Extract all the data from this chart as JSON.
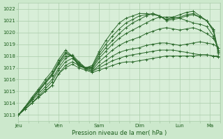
{
  "xlabel": "Pression niveau de la mer( hPa )",
  "bg_color": "#cce8cc",
  "plot_bg_color": "#d8eed8",
  "grid_color": "#aaccaa",
  "line_color": "#2d6a2d",
  "ylim": [
    1012.5,
    1022.5
  ],
  "yticks": [
    1013,
    1014,
    1015,
    1016,
    1017,
    1018,
    1019,
    1020,
    1021,
    1022
  ],
  "day_labels": [
    "Jeu",
    "Ven",
    "Sam",
    "Dim",
    "Lun",
    "Ma"
  ],
  "day_positions": [
    0,
    24,
    48,
    72,
    96,
    114
  ],
  "xlim": [
    0,
    120
  ],
  "line_width": 0.7,
  "marker_size": 3.0,
  "series": [
    {
      "points": [
        [
          0,
          1013.0
        ],
        [
          4,
          1013.5
        ],
        [
          8,
          1014.0
        ],
        [
          12,
          1014.5
        ],
        [
          16,
          1015.0
        ],
        [
          20,
          1015.5
        ],
        [
          24,
          1016.5
        ],
        [
          28,
          1017.0
        ],
        [
          32,
          1017.3
        ],
        [
          36,
          1017.0
        ],
        [
          40,
          1016.8
        ],
        [
          44,
          1016.6
        ],
        [
          48,
          1016.8
        ],
        [
          52,
          1017.0
        ],
        [
          56,
          1017.2
        ],
        [
          60,
          1017.4
        ],
        [
          64,
          1017.5
        ],
        [
          68,
          1017.5
        ],
        [
          72,
          1017.6
        ],
        [
          76,
          1017.7
        ],
        [
          80,
          1017.8
        ],
        [
          84,
          1017.9
        ],
        [
          88,
          1018.0
        ],
        [
          92,
          1018.0
        ],
        [
          96,
          1018.0
        ],
        [
          100,
          1018.0
        ],
        [
          104,
          1018.0
        ],
        [
          108,
          1018.1
        ],
        [
          112,
          1018.1
        ],
        [
          116,
          1018.0
        ],
        [
          119,
          1017.9
        ]
      ]
    },
    {
      "points": [
        [
          0,
          1013.0
        ],
        [
          4,
          1013.5
        ],
        [
          8,
          1014.0
        ],
        [
          12,
          1014.5
        ],
        [
          16,
          1015.0
        ],
        [
          20,
          1015.5
        ],
        [
          24,
          1016.5
        ],
        [
          28,
          1017.2
        ],
        [
          32,
          1017.5
        ],
        [
          36,
          1017.2
        ],
        [
          40,
          1016.9
        ],
        [
          44,
          1016.7
        ],
        [
          48,
          1017.0
        ],
        [
          52,
          1017.3
        ],
        [
          56,
          1017.6
        ],
        [
          60,
          1017.8
        ],
        [
          64,
          1018.0
        ],
        [
          68,
          1018.1
        ],
        [
          72,
          1018.2
        ],
        [
          76,
          1018.3
        ],
        [
          80,
          1018.4
        ],
        [
          84,
          1018.5
        ],
        [
          88,
          1018.5
        ],
        [
          92,
          1018.5
        ],
        [
          96,
          1018.4
        ],
        [
          100,
          1018.3
        ],
        [
          104,
          1018.2
        ],
        [
          108,
          1018.1
        ],
        [
          112,
          1018.1
        ],
        [
          116,
          1018.0
        ],
        [
          119,
          1018.0
        ]
      ]
    },
    {
      "points": [
        [
          0,
          1013.0
        ],
        [
          4,
          1013.5
        ],
        [
          8,
          1014.0
        ],
        [
          12,
          1014.6
        ],
        [
          16,
          1015.2
        ],
        [
          20,
          1015.8
        ],
        [
          24,
          1016.8
        ],
        [
          28,
          1017.5
        ],
        [
          32,
          1017.8
        ],
        [
          36,
          1017.3
        ],
        [
          40,
          1016.9
        ],
        [
          44,
          1016.7
        ],
        [
          48,
          1017.2
        ],
        [
          52,
          1017.6
        ],
        [
          56,
          1018.0
        ],
        [
          60,
          1018.3
        ],
        [
          64,
          1018.5
        ],
        [
          68,
          1018.6
        ],
        [
          72,
          1018.7
        ],
        [
          76,
          1018.9
        ],
        [
          80,
          1019.0
        ],
        [
          84,
          1019.1
        ],
        [
          88,
          1019.1
        ],
        [
          92,
          1019.0
        ],
        [
          96,
          1018.9
        ],
        [
          100,
          1019.0
        ],
        [
          104,
          1019.1
        ],
        [
          108,
          1019.2
        ],
        [
          112,
          1019.1
        ],
        [
          116,
          1019.0
        ],
        [
          119,
          1018.7
        ]
      ]
    },
    {
      "points": [
        [
          0,
          1013.0
        ],
        [
          4,
          1013.6
        ],
        [
          8,
          1014.2
        ],
        [
          12,
          1014.8
        ],
        [
          16,
          1015.4
        ],
        [
          20,
          1016.0
        ],
        [
          24,
          1017.0
        ],
        [
          28,
          1017.8
        ],
        [
          32,
          1018.1
        ],
        [
          36,
          1017.5
        ],
        [
          40,
          1017.0
        ],
        [
          44,
          1016.8
        ],
        [
          48,
          1017.5
        ],
        [
          52,
          1018.0
        ],
        [
          56,
          1018.5
        ],
        [
          60,
          1018.9
        ],
        [
          64,
          1019.2
        ],
        [
          68,
          1019.4
        ],
        [
          72,
          1019.6
        ],
        [
          76,
          1019.9
        ],
        [
          80,
          1020.1
        ],
        [
          84,
          1020.3
        ],
        [
          88,
          1020.4
        ],
        [
          92,
          1020.3
        ],
        [
          96,
          1020.2
        ],
        [
          100,
          1020.3
        ],
        [
          104,
          1020.4
        ],
        [
          108,
          1020.2
        ],
        [
          112,
          1019.9
        ],
        [
          116,
          1019.5
        ],
        [
          119,
          1018.7
        ]
      ]
    },
    {
      "points": [
        [
          0,
          1013.0
        ],
        [
          4,
          1013.6
        ],
        [
          8,
          1014.3
        ],
        [
          12,
          1015.0
        ],
        [
          16,
          1015.7
        ],
        [
          20,
          1016.3
        ],
        [
          24,
          1017.3
        ],
        [
          28,
          1018.0
        ],
        [
          32,
          1018.0
        ],
        [
          36,
          1017.4
        ],
        [
          40,
          1017.0
        ],
        [
          44,
          1016.9
        ],
        [
          48,
          1017.8
        ],
        [
          52,
          1018.4
        ],
        [
          56,
          1019.0
        ],
        [
          60,
          1019.5
        ],
        [
          64,
          1019.9
        ],
        [
          68,
          1020.2
        ],
        [
          72,
          1020.5
        ],
        [
          76,
          1020.8
        ],
        [
          80,
          1021.1
        ],
        [
          84,
          1021.3
        ],
        [
          88,
          1021.3
        ],
        [
          92,
          1021.3
        ],
        [
          96,
          1021.2
        ],
        [
          100,
          1021.0
        ],
        [
          104,
          1020.8
        ],
        [
          108,
          1020.7
        ],
        [
          112,
          1020.5
        ],
        [
          116,
          1019.7
        ],
        [
          119,
          1018.5
        ]
      ]
    },
    {
      "points": [
        [
          0,
          1013.0
        ],
        [
          4,
          1013.6
        ],
        [
          8,
          1014.3
        ],
        [
          12,
          1015.0
        ],
        [
          16,
          1015.7
        ],
        [
          20,
          1016.4
        ],
        [
          24,
          1017.4
        ],
        [
          28,
          1018.2
        ],
        [
          32,
          1018.0
        ],
        [
          36,
          1017.3
        ],
        [
          40,
          1017.0
        ],
        [
          44,
          1017.0
        ],
        [
          48,
          1018.0
        ],
        [
          52,
          1018.7
        ],
        [
          56,
          1019.3
        ],
        [
          60,
          1019.9
        ],
        [
          64,
          1020.4
        ],
        [
          68,
          1020.8
        ],
        [
          72,
          1021.1
        ],
        [
          76,
          1021.4
        ],
        [
          80,
          1021.6
        ],
        [
          84,
          1021.4
        ],
        [
          88,
          1021.0
        ],
        [
          92,
          1021.1
        ],
        [
          96,
          1021.2
        ],
        [
          100,
          1021.4
        ],
        [
          104,
          1021.5
        ],
        [
          108,
          1021.3
        ],
        [
          112,
          1021.0
        ],
        [
          116,
          1020.3
        ],
        [
          119,
          1018.4
        ]
      ]
    },
    {
      "points": [
        [
          0,
          1013.0
        ],
        [
          4,
          1013.7
        ],
        [
          8,
          1014.4
        ],
        [
          12,
          1015.1
        ],
        [
          16,
          1015.8
        ],
        [
          20,
          1016.5
        ],
        [
          24,
          1017.5
        ],
        [
          28,
          1018.3
        ],
        [
          32,
          1018.0
        ],
        [
          36,
          1017.2
        ],
        [
          40,
          1017.0
        ],
        [
          44,
          1017.1
        ],
        [
          48,
          1018.2
        ],
        [
          52,
          1019.0
        ],
        [
          56,
          1019.7
        ],
        [
          60,
          1020.3
        ],
        [
          64,
          1020.8
        ],
        [
          68,
          1021.1
        ],
        [
          72,
          1021.4
        ],
        [
          76,
          1021.5
        ],
        [
          80,
          1021.6
        ],
        [
          84,
          1021.4
        ],
        [
          88,
          1021.1
        ],
        [
          92,
          1021.2
        ],
        [
          96,
          1021.3
        ],
        [
          100,
          1021.5
        ],
        [
          104,
          1021.6
        ],
        [
          108,
          1021.3
        ],
        [
          112,
          1021.0
        ],
        [
          116,
          1020.2
        ],
        [
          119,
          1018.3
        ]
      ]
    },
    {
      "points": [
        [
          0,
          1013.0
        ],
        [
          4,
          1013.7
        ],
        [
          8,
          1014.5
        ],
        [
          12,
          1015.2
        ],
        [
          16,
          1016.0
        ],
        [
          20,
          1016.7
        ],
        [
          24,
          1017.7
        ],
        [
          28,
          1018.5
        ],
        [
          32,
          1018.0
        ],
        [
          36,
          1017.1
        ],
        [
          40,
          1017.0
        ],
        [
          44,
          1017.2
        ],
        [
          48,
          1018.4
        ],
        [
          52,
          1019.3
        ],
        [
          56,
          1020.1
        ],
        [
          60,
          1020.8
        ],
        [
          64,
          1021.2
        ],
        [
          68,
          1021.4
        ],
        [
          72,
          1021.6
        ],
        [
          76,
          1021.6
        ],
        [
          80,
          1021.5
        ],
        [
          84,
          1021.4
        ],
        [
          88,
          1021.1
        ],
        [
          92,
          1021.3
        ],
        [
          96,
          1021.5
        ],
        [
          100,
          1021.7
        ],
        [
          104,
          1021.8
        ],
        [
          108,
          1021.4
        ],
        [
          112,
          1021.0
        ],
        [
          116,
          1020.1
        ],
        [
          119,
          1018.2
        ]
      ]
    }
  ]
}
